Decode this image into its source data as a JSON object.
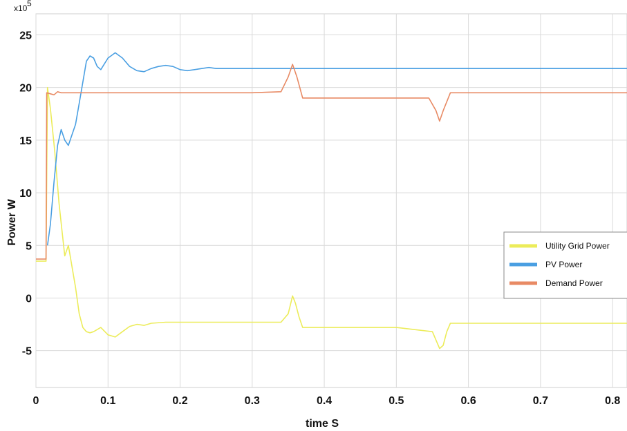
{
  "chart_data": {
    "type": "line",
    "xlabel": "time S",
    "ylabel": "Power W",
    "y_exponent_base": "x10",
    "y_exponent_power": "5",
    "xlim": [
      0,
      0.82
    ],
    "ylim": [
      -8.5,
      27
    ],
    "x_ticks": [
      {
        "value": 0,
        "label": "0"
      },
      {
        "value": 0.1,
        "label": "0.1"
      },
      {
        "value": 0.2,
        "label": "0.2"
      },
      {
        "value": 0.3,
        "label": "0.3"
      },
      {
        "value": 0.4,
        "label": "0.4"
      },
      {
        "value": 0.5,
        "label": "0.5"
      },
      {
        "value": 0.6,
        "label": "0.6"
      },
      {
        "value": 0.7,
        "label": "0.7"
      },
      {
        "value": 0.8,
        "label": "0.8"
      }
    ],
    "y_ticks": [
      {
        "value": 25,
        "label": "25"
      },
      {
        "value": 20,
        "label": "20"
      },
      {
        "value": 15,
        "label": "15"
      },
      {
        "value": 10,
        "label": "10"
      },
      {
        "value": 5,
        "label": "5"
      },
      {
        "value": 0,
        "label": "0"
      },
      {
        "value": -5,
        "label": "-5"
      }
    ],
    "grid": true,
    "legend_position": "right",
    "series": [
      {
        "name": "Utility Grid Power",
        "color": "#ecec5a",
        "x": [
          0,
          0.014,
          0.016,
          0.02,
          0.026,
          0.032,
          0.036,
          0.04,
          0.045,
          0.05,
          0.055,
          0.06,
          0.065,
          0.07,
          0.075,
          0.08,
          0.09,
          0.1,
          0.11,
          0.12,
          0.13,
          0.14,
          0.15,
          0.16,
          0.18,
          0.2,
          0.22,
          0.25,
          0.3,
          0.34,
          0.35,
          0.356,
          0.36,
          0.365,
          0.37,
          0.4,
          0.5,
          0.55,
          0.56,
          0.565,
          0.57,
          0.575,
          0.6,
          0.7,
          0.82
        ],
        "y": [
          3.5,
          3.5,
          20,
          18,
          14,
          9,
          6.5,
          4,
          5,
          3,
          1,
          -1.5,
          -2.8,
          -3.2,
          -3.3,
          -3.2,
          -2.8,
          -3.5,
          -3.7,
          -3.2,
          -2.7,
          -2.5,
          -2.6,
          -2.4,
          -2.3,
          -2.3,
          -2.3,
          -2.3,
          -2.3,
          -2.3,
          -1.5,
          0.2,
          -0.5,
          -1.8,
          -2.8,
          -2.8,
          -2.8,
          -3.2,
          -4.8,
          -4.5,
          -3.2,
          -2.4,
          -2.4,
          -2.4,
          -2.4
        ]
      },
      {
        "name": "PV Power",
        "color": "#4a9fe2",
        "x": [
          0.016,
          0.02,
          0.025,
          0.03,
          0.035,
          0.04,
          0.045,
          0.05,
          0.055,
          0.06,
          0.065,
          0.07,
          0.075,
          0.08,
          0.085,
          0.09,
          0.1,
          0.11,
          0.12,
          0.13,
          0.14,
          0.15,
          0.16,
          0.17,
          0.18,
          0.19,
          0.2,
          0.21,
          0.22,
          0.23,
          0.24,
          0.25,
          0.3,
          0.4,
          0.5,
          0.6,
          0.7,
          0.82
        ],
        "y": [
          5,
          7,
          11,
          14.5,
          16,
          15,
          14.5,
          15.5,
          16.5,
          18.5,
          20.5,
          22.5,
          23,
          22.8,
          22,
          21.7,
          22.8,
          23.3,
          22.8,
          22,
          21.6,
          21.5,
          21.8,
          22,
          22.1,
          22,
          21.7,
          21.6,
          21.7,
          21.8,
          21.9,
          21.8,
          21.8,
          21.8,
          21.8,
          21.8,
          21.8,
          21.8
        ]
      },
      {
        "name": "Demand Power",
        "color": "#e88a64",
        "x": [
          0,
          0.014,
          0.015,
          0.02,
          0.025,
          0.03,
          0.035,
          0.045,
          0.06,
          0.1,
          0.2,
          0.3,
          0.34,
          0.35,
          0.356,
          0.362,
          0.37,
          0.4,
          0.5,
          0.545,
          0.555,
          0.56,
          0.565,
          0.575,
          0.6,
          0.7,
          0.82
        ],
        "y": [
          3.7,
          3.7,
          19.5,
          19.4,
          19.3,
          19.6,
          19.5,
          19.5,
          19.5,
          19.5,
          19.5,
          19.5,
          19.6,
          21,
          22.2,
          21,
          19,
          19,
          19,
          19,
          17.8,
          16.8,
          17.8,
          19.5,
          19.5,
          19.5,
          19.5
        ]
      }
    ]
  }
}
